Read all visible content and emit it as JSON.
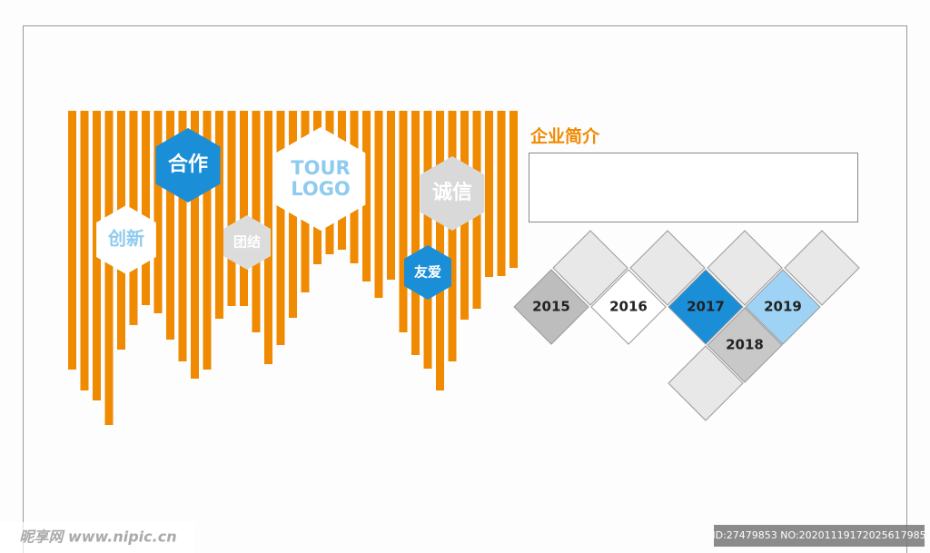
{
  "hexagons": [
    "合作",
    "创新",
    "团结",
    "诚信",
    "友爱"
  ],
  "logo": [
    "TOUR",
    "LOGO"
  ],
  "intro": {
    "title": "企业简介"
  },
  "years": [
    "2015",
    "2016",
    "2017",
    "2018",
    "2019"
  ],
  "watermark": {
    "site": "昵享网 www.nipic.cn",
    "id": "ID:27479853 NO:20201119172025617985"
  }
}
